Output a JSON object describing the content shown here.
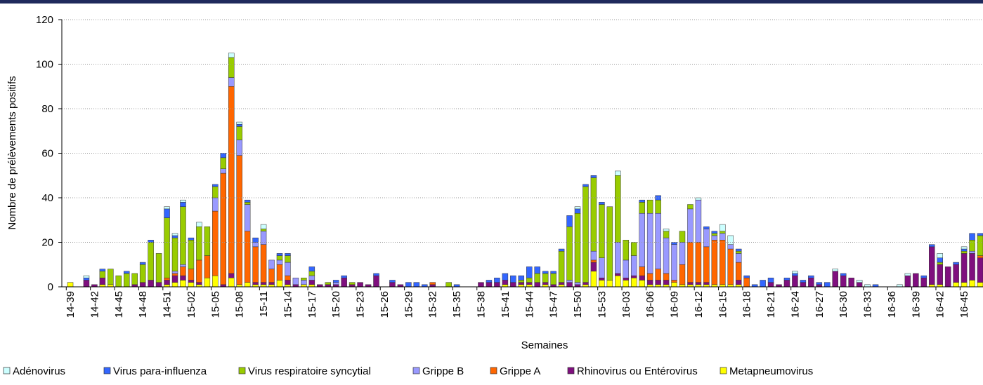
{
  "chart_data": {
    "type": "stacked-bar",
    "y_label": "Nombre de prélèvements positifs",
    "x_label": "Semaines",
    "ylim": [
      0,
      120
    ],
    "yticks": [
      0,
      20,
      40,
      60,
      80,
      100,
      120
    ],
    "grid": true,
    "legend": "bottom",
    "categories": [
      "14-39",
      null,
      null,
      "14-42",
      null,
      null,
      "14-45",
      null,
      null,
      "14-48",
      null,
      null,
      "14-51",
      null,
      null,
      "15-02",
      null,
      null,
      "15-05",
      null,
      null,
      "15-08",
      null,
      null,
      "15-11",
      null,
      null,
      "15-14",
      null,
      null,
      "15-17",
      null,
      null,
      "15-20",
      null,
      null,
      "15-23",
      null,
      null,
      "15-26",
      null,
      null,
      "15-29",
      null,
      null,
      "15-32",
      null,
      null,
      "15-35",
      null,
      null,
      "15-38",
      null,
      null,
      "15-41",
      null,
      null,
      "15-44",
      null,
      null,
      "15-47",
      null,
      null,
      "15-50",
      null,
      null,
      "15-53",
      null,
      null,
      "16-03",
      null,
      null,
      "16-06",
      null,
      null,
      "16-09",
      null,
      null,
      "16-12",
      null,
      null,
      "16-15",
      null,
      null,
      "16-18",
      null,
      null,
      "16-21",
      null,
      null,
      "16-24",
      null,
      null,
      "16-27",
      null,
      null,
      "16-30",
      null,
      null,
      "16-33",
      null,
      null,
      "16-36",
      null,
      null,
      "16-39",
      null,
      null,
      "16-42",
      null,
      null,
      "16-45",
      null,
      null,
      null
    ],
    "series": [
      {
        "name": "Metapneumovirus",
        "color": "#ffff00",
        "values": [
          2,
          0,
          0,
          0,
          1,
          1,
          0,
          0,
          0,
          0,
          0,
          0,
          1,
          2,
          3,
          2,
          1,
          4,
          5,
          0,
          4,
          1,
          2,
          1,
          1,
          1,
          3,
          1,
          0,
          1,
          1,
          0,
          0,
          0,
          0,
          0,
          0,
          0,
          0,
          0,
          0,
          0,
          0,
          0,
          0,
          0,
          0,
          0,
          0,
          0,
          0,
          0,
          0,
          0,
          1,
          0,
          1,
          1,
          0,
          1,
          0,
          1,
          0,
          0,
          1,
          7,
          3,
          3,
          5,
          3,
          4,
          3,
          1,
          1,
          1,
          2,
          1,
          1,
          1,
          1,
          1,
          1,
          1,
          1,
          0,
          0,
          0,
          0,
          0,
          0,
          0,
          0,
          0,
          0,
          0,
          0,
          0,
          0,
          0,
          0,
          0,
          0,
          0,
          0,
          0,
          0,
          0,
          1,
          1,
          0,
          2,
          2,
          3,
          2,
          3
        ]
      },
      {
        "name": "Rhinovirus ou Entérovirus",
        "color": "#7f0f7e",
        "values": [
          0,
          0,
          3,
          1,
          3,
          0,
          0,
          0,
          1,
          2,
          3,
          2,
          2,
          3,
          2,
          1,
          1,
          0,
          0,
          1,
          2,
          0,
          0,
          1,
          1,
          1,
          0,
          2,
          1,
          0,
          2,
          1,
          1,
          1,
          4,
          1,
          2,
          1,
          5,
          0,
          2,
          1,
          0,
          0,
          0,
          1,
          0,
          0,
          0,
          0,
          0,
          2,
          2,
          2,
          2,
          2,
          1,
          1,
          2,
          1,
          1,
          1,
          2,
          1,
          1,
          4,
          1,
          0,
          1,
          1,
          1,
          2,
          2,
          2,
          2,
          0,
          0,
          1,
          1,
          1,
          0,
          0,
          0,
          2,
          0,
          0,
          0,
          2,
          1,
          3,
          5,
          2,
          4,
          1,
          0,
          7,
          5,
          4,
          2,
          0,
          0,
          0,
          0,
          0,
          5,
          6,
          4,
          17,
          9,
          9,
          8,
          13,
          12,
          11,
          13
        ]
      },
      {
        "name": "Grippe A",
        "color": "#ff6600",
        "values": [
          0,
          0,
          0,
          0,
          0,
          0,
          0,
          0,
          0,
          0,
          0,
          0,
          1,
          1,
          4,
          5,
          10,
          10,
          29,
          50,
          84,
          58,
          23,
          16,
          17,
          6,
          7,
          2,
          0,
          0,
          0,
          0,
          0,
          0,
          0,
          0,
          0,
          0,
          0,
          0,
          0,
          0,
          0,
          0,
          0,
          1,
          0,
          0,
          0,
          0,
          0,
          0,
          0,
          0,
          0,
          0,
          0,
          0,
          0,
          0,
          0,
          0,
          0,
          0,
          0,
          1,
          0,
          0,
          0,
          0,
          0,
          4,
          3,
          5,
          3,
          1,
          9,
          18,
          18,
          16,
          20,
          20,
          16,
          8,
          4,
          0,
          0,
          0,
          0,
          0,
          0,
          0,
          0,
          0,
          0,
          0,
          0,
          0,
          0,
          0,
          0,
          0,
          0,
          0,
          0,
          0,
          0,
          0,
          0,
          0,
          0,
          0,
          0,
          1,
          3
        ]
      },
      {
        "name": "Grippe B",
        "color": "#9999ff",
        "values": [
          0,
          0,
          0,
          0,
          0,
          0,
          0,
          0,
          0,
          0,
          0,
          0,
          0,
          1,
          1,
          0,
          0,
          0,
          6,
          2,
          4,
          7,
          12,
          2,
          6,
          4,
          2,
          6,
          3,
          2,
          2,
          0,
          0,
          1,
          0,
          0,
          0,
          0,
          0,
          0,
          0,
          0,
          0,
          0,
          0,
          0,
          0,
          0,
          0,
          0,
          0,
          0,
          0,
          0,
          0,
          0,
          0,
          0,
          0,
          0,
          0,
          0,
          1,
          1,
          0,
          4,
          9,
          0,
          14,
          8,
          9,
          24,
          27,
          25,
          16,
          16,
          10,
          15,
          19,
          8,
          2,
          3,
          2,
          4,
          0,
          0,
          0,
          0,
          0,
          0,
          0,
          0,
          0,
          0,
          0,
          0,
          0,
          0,
          0,
          0,
          0,
          0,
          0,
          0,
          0,
          0,
          0,
          0,
          0,
          0,
          0,
          0,
          1,
          0,
          0
        ]
      },
      {
        "name": "Virus respiratoire syncytial",
        "color": "#99cc00",
        "values": [
          0,
          0,
          0,
          0,
          3,
          7,
          5,
          6,
          5,
          8,
          17,
          13,
          27,
          15,
          26,
          13,
          15,
          13,
          5,
          5,
          9,
          6,
          1,
          0,
          1,
          0,
          2,
          3,
          0,
          1,
          2,
          0,
          1,
          0,
          0,
          1,
          0,
          0,
          0,
          0,
          0,
          0,
          0,
          0,
          0,
          0,
          0,
          2,
          0,
          0,
          0,
          0,
          0,
          0,
          0,
          0,
          1,
          2,
          4,
          4,
          5,
          14,
          24,
          31,
          43,
          33,
          24,
          33,
          30,
          9,
          6,
          5,
          6,
          6,
          3,
          0,
          5,
          2,
          0,
          0,
          1,
          1,
          0,
          1,
          0,
          0,
          0,
          0,
          0,
          0,
          0,
          0,
          0,
          0,
          0,
          0,
          0,
          0,
          0,
          0,
          0,
          0,
          0,
          0,
          0,
          0,
          0,
          0,
          1,
          0,
          0,
          1,
          5,
          9,
          11
        ]
      },
      {
        "name": "Virus para-influenza",
        "color": "#3366ff",
        "values": [
          0,
          0,
          1,
          0,
          1,
          0,
          0,
          1,
          0,
          1,
          1,
          0,
          4,
          1,
          2,
          1,
          0,
          0,
          1,
          2,
          0,
          1,
          1,
          2,
          0,
          0,
          1,
          1,
          0,
          0,
          2,
          0,
          0,
          1,
          1,
          0,
          0,
          0,
          1,
          0,
          1,
          0,
          2,
          2,
          1,
          0,
          0,
          0,
          1,
          0,
          0,
          0,
          1,
          2,
          3,
          3,
          2,
          5,
          3,
          1,
          1,
          1,
          5,
          2,
          1,
          1,
          1,
          0,
          0,
          0,
          0,
          1,
          0,
          2,
          0,
          1,
          0,
          0,
          0,
          1,
          1,
          0,
          0,
          1,
          1,
          1,
          3,
          2,
          0,
          1,
          1,
          1,
          1,
          1,
          2,
          0,
          1,
          0,
          0,
          0,
          1,
          0,
          0,
          0,
          0,
          0,
          1,
          1,
          2,
          0,
          1,
          1,
          3,
          1,
          1
        ]
      },
      {
        "name": "Adénovirus",
        "color": "#ccffff",
        "values": [
          0,
          0,
          1,
          0,
          0,
          0,
          0,
          0,
          0,
          0,
          0,
          0,
          1,
          1,
          1,
          0,
          2,
          0,
          0,
          0,
          2,
          1,
          0,
          0,
          2,
          0,
          0,
          0,
          0,
          0,
          0,
          0,
          0,
          0,
          0,
          0,
          0,
          0,
          0,
          0,
          0,
          0,
          0,
          0,
          0,
          0,
          0,
          0,
          0,
          0,
          0,
          0,
          0,
          0,
          0,
          0,
          0,
          0,
          0,
          0,
          0,
          0,
          0,
          1,
          0,
          0,
          0,
          0,
          2,
          0,
          0,
          0,
          0,
          0,
          1,
          0,
          0,
          0,
          1,
          0,
          0,
          3,
          4,
          0,
          0,
          0,
          0,
          0,
          0,
          0,
          1,
          0,
          0,
          0,
          0,
          1,
          0,
          0,
          1,
          1,
          0,
          0,
          0,
          1,
          1,
          0,
          0,
          0,
          2,
          0,
          0,
          1,
          0,
          0,
          0
        ]
      }
    ]
  }
}
